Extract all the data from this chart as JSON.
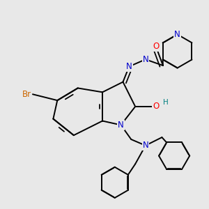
{
  "background_color": "#e8e8e8",
  "bond_color": "#000000",
  "atom_colors": {
    "N": "#0000cc",
    "O": "#ff0000",
    "Br": "#cc6600",
    "H": "#008080",
    "C": "#000000"
  },
  "line_width": 1.4,
  "figsize": [
    3.0,
    3.0
  ],
  "dpi": 100
}
